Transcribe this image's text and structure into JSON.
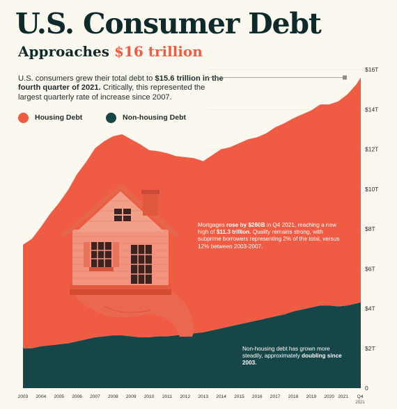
{
  "header": {
    "title": "U.S. Consumer Debt",
    "subtitle_prefix": "Approaches",
    "subtitle_highlight": "$16 trillion"
  },
  "intro": {
    "text_1": "U.S. consumers grew their total debt to ",
    "bold_1": "$15.6 trillion in the fourth quarter of 2021.",
    "text_2": " Critically, this represented the largest quarterly rate of increase since 2007."
  },
  "legend": [
    {
      "label": "Housing Debt",
      "color": "#ef5c43"
    },
    {
      "label": "Non-housing Debt",
      "color": "#174648"
    }
  ],
  "annotations": {
    "mortgage": {
      "t1": "Mortgages ",
      "b1": "rose by $260B",
      "t2": " in Q4 2021, reaching a new high of ",
      "b2": "$11.3 trillion.",
      "t3": " Quality remains strong, with subprime borrowers representing 2% of the total, versus 12% between 2003-2007."
    },
    "nonhousing": {
      "t1": "Non-housing debt has grown more steadily, approximately ",
      "b1": "doubling since 2003."
    }
  },
  "chart_data": {
    "type": "area",
    "stacked": true,
    "x": [
      2003.0,
      2003.5,
      2004.0,
      2004.5,
      2005.0,
      2005.5,
      2006.0,
      2006.5,
      2007.0,
      2007.5,
      2008.0,
      2008.5,
      2009.0,
      2009.5,
      2010.0,
      2010.5,
      2011.0,
      2011.5,
      2012.0,
      2012.5,
      2013.0,
      2013.5,
      2014.0,
      2014.5,
      2015.0,
      2015.5,
      2016.0,
      2016.5,
      2017.0,
      2017.5,
      2018.0,
      2018.5,
      2019.0,
      2019.5,
      2020.0,
      2020.5,
      2021.0,
      2021.5,
      2021.75
    ],
    "series": [
      {
        "name": "Housing Debt",
        "color": "#ef5c43",
        "values": [
          5.2,
          5.5,
          6.0,
          6.6,
          7.1,
          7.7,
          8.4,
          8.9,
          9.5,
          9.8,
          10.0,
          10.1,
          9.9,
          9.7,
          9.4,
          9.3,
          9.2,
          9.0,
          8.9,
          8.8,
          8.6,
          8.8,
          9.0,
          9.0,
          9.1,
          9.2,
          9.2,
          9.3,
          9.5,
          9.6,
          9.7,
          9.8,
          9.9,
          10.1,
          10.1,
          10.3,
          10.6,
          11.0,
          11.3
        ]
      },
      {
        "name": "Non-housing Debt",
        "color": "#174648",
        "values": [
          2.0,
          2.0,
          2.1,
          2.15,
          2.2,
          2.25,
          2.35,
          2.45,
          2.55,
          2.6,
          2.65,
          2.65,
          2.6,
          2.55,
          2.55,
          2.6,
          2.6,
          2.65,
          2.7,
          2.75,
          2.8,
          2.9,
          3.0,
          3.1,
          3.2,
          3.3,
          3.4,
          3.5,
          3.6,
          3.7,
          3.85,
          3.95,
          4.05,
          4.15,
          4.15,
          4.1,
          4.15,
          4.25,
          4.3
        ]
      }
    ],
    "total_line": {
      "label": "$15.6 trillion",
      "value": 15.6
    },
    "y_ticks": [
      "$16T",
      "$14T",
      "$12T",
      "$10T",
      "$8T",
      "$6T",
      "$4T",
      "$2T",
      "0"
    ],
    "y_tick_values": [
      16,
      14,
      12,
      10,
      8,
      6,
      4,
      2,
      0
    ],
    "x_ticks": [
      "2003",
      "2004",
      "2005",
      "2006",
      "2007",
      "2008",
      "2009",
      "2010",
      "2011",
      "2012",
      "2013",
      "2014",
      "2015",
      "2016",
      "2017",
      "2018",
      "2019",
      "2020",
      "2021",
      "Q4"
    ],
    "x_tick_sub": "2021",
    "ylim": [
      0,
      16
    ],
    "xlim": [
      2003,
      2021.75
    ]
  }
}
